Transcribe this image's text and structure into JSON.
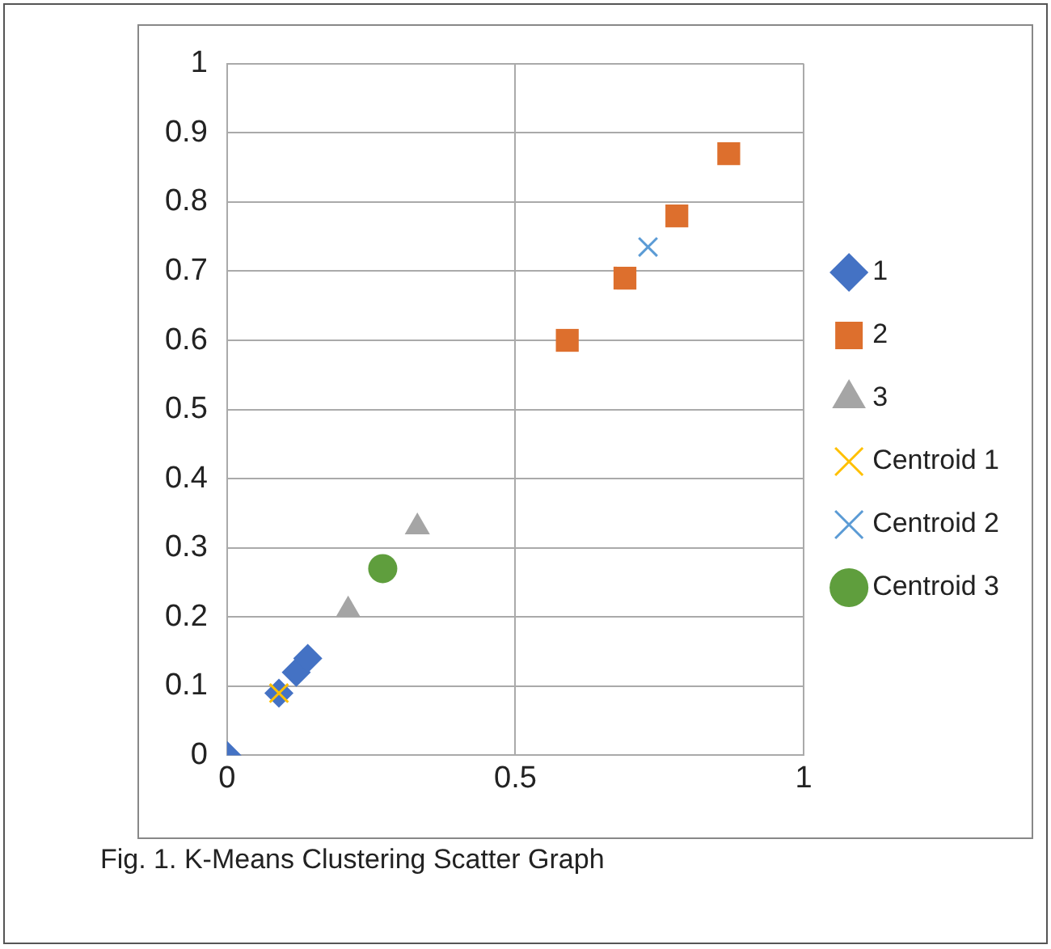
{
  "chart_data": {
    "type": "scatter",
    "xlim": [
      0,
      1
    ],
    "xticks": [
      0,
      0.5,
      1
    ],
    "ylim": [
      0,
      1
    ],
    "yticks": [
      0,
      0.1,
      0.2,
      0.3,
      0.4,
      0.5,
      0.6,
      0.7,
      0.8,
      0.9,
      1
    ],
    "grid": true,
    "legend": "right",
    "series": [
      {
        "name": "1",
        "color": "#4472c4",
        "marker": "diamond",
        "x": [
          0,
          0.09,
          0.12,
          0.14
        ],
        "values": [
          0,
          0.09,
          0.12,
          0.14
        ]
      },
      {
        "name": "2",
        "color": "#dd6f2d",
        "marker": "square",
        "x": [
          0.59,
          0.69,
          0.78,
          0.87
        ],
        "values": [
          0.6,
          0.69,
          0.78,
          0.87
        ]
      },
      {
        "name": "3",
        "color": "#a5a5a5",
        "marker": "triangle",
        "x": [
          0.21,
          0.33
        ],
        "values": [
          0.21,
          0.33
        ]
      },
      {
        "name": "Centroid 1",
        "color": "#ffc000",
        "marker": "cross",
        "x": [
          0.09
        ],
        "values": [
          0.09
        ]
      },
      {
        "name": "Centroid 2",
        "color": "#5b9bd5",
        "marker": "cross",
        "x": [
          0.73
        ],
        "values": [
          0.735
        ]
      },
      {
        "name": "Centroid 3",
        "color": "#5f9e3d",
        "marker": "circle",
        "x": [
          0.27
        ],
        "values": [
          0.27
        ]
      }
    ],
    "annotations": [
      "Fig. 1. K-Means Clustering Scatter Graph"
    ]
  }
}
